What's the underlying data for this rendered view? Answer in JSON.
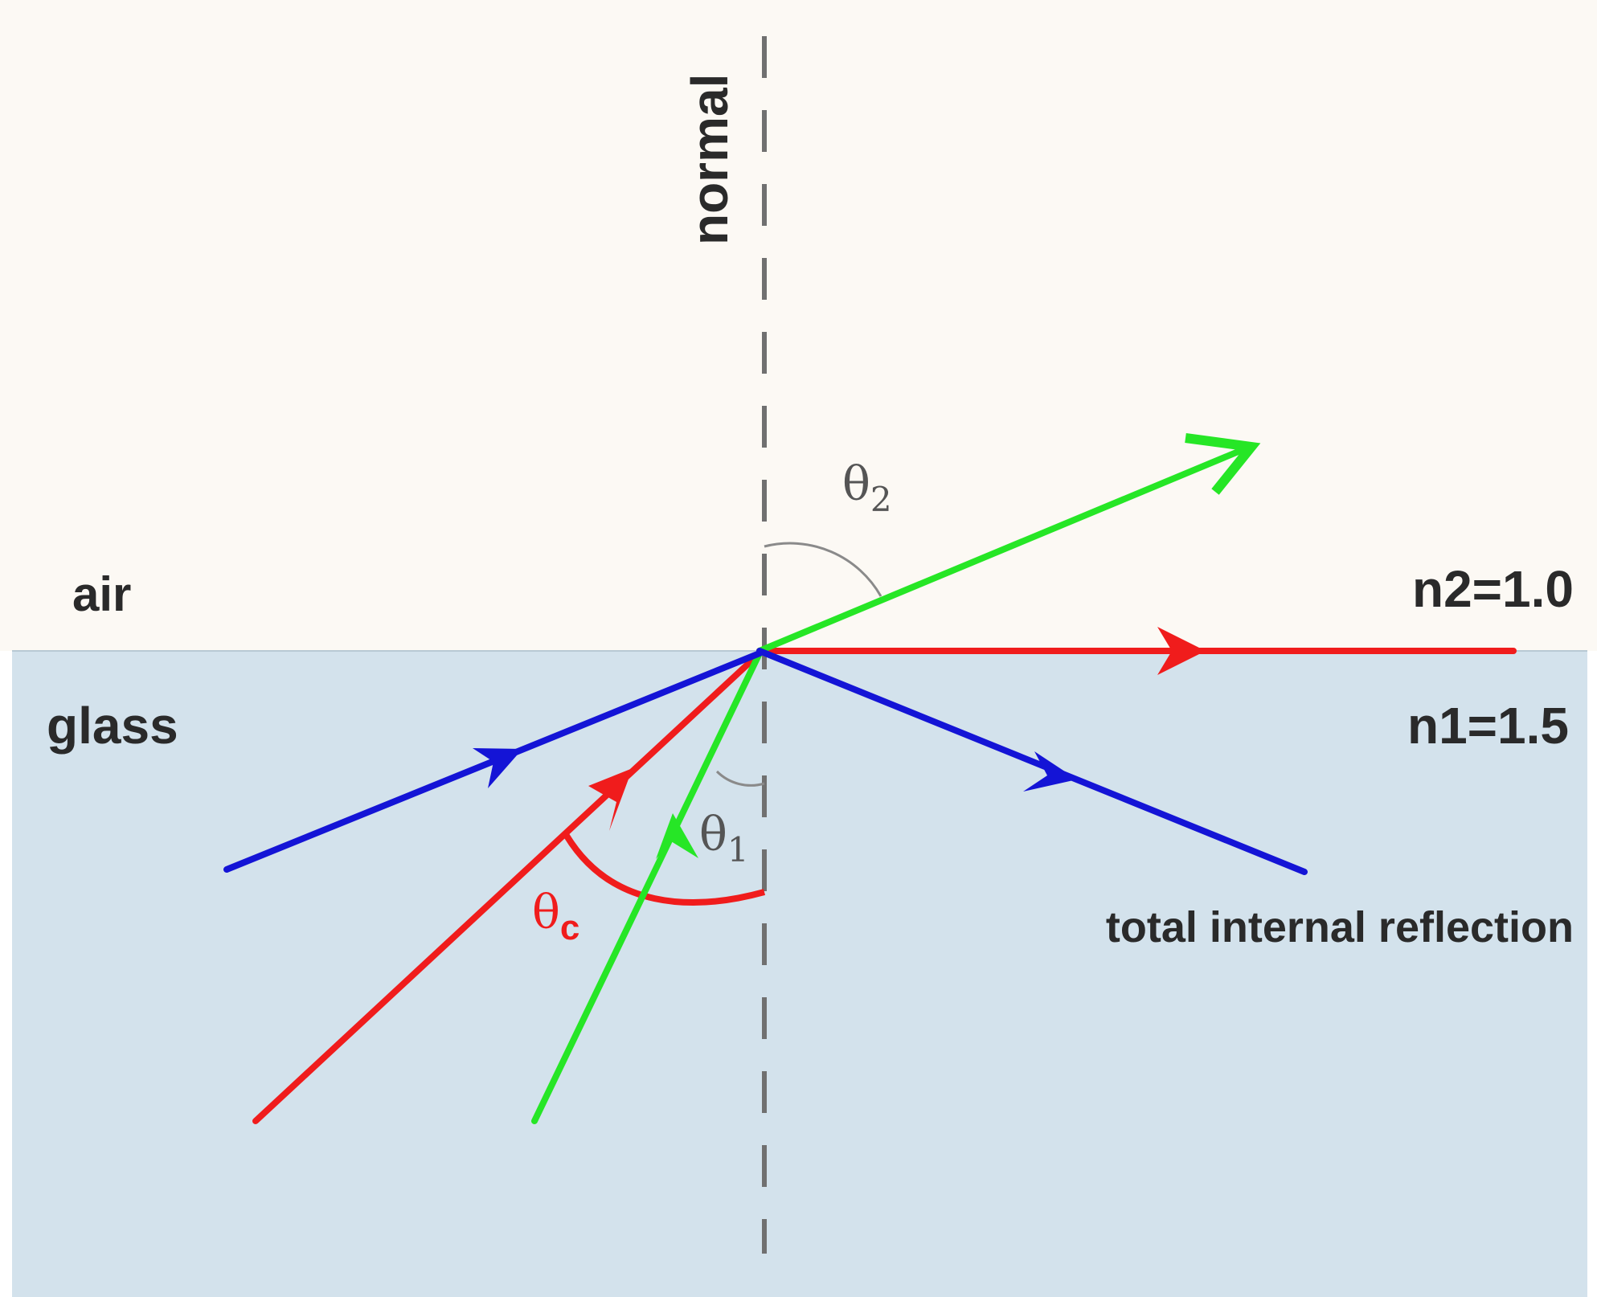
{
  "labels": {
    "normal": "normal",
    "air": "air",
    "glass": "glass",
    "n2": "n2=1.0",
    "n1": "n1=1.5",
    "tir": "total internal reflection",
    "theta2_base": "θ",
    "theta2_sub": "2",
    "theta1_base": "θ",
    "theta1_sub": "1",
    "thetac_base": "θ",
    "thetac_sub": "c"
  },
  "colors": {
    "air": "#fcf9f4",
    "glass": "#d3e2ec",
    "red_ray": "#f01c1c",
    "green_ray": "#26e626",
    "blue_ray": "#1414d6",
    "normal_line": "#707070",
    "angle_arc": "#8a8a8a",
    "critical_arc": "#f01c1c",
    "label_text": "#2a2a2a"
  }
}
